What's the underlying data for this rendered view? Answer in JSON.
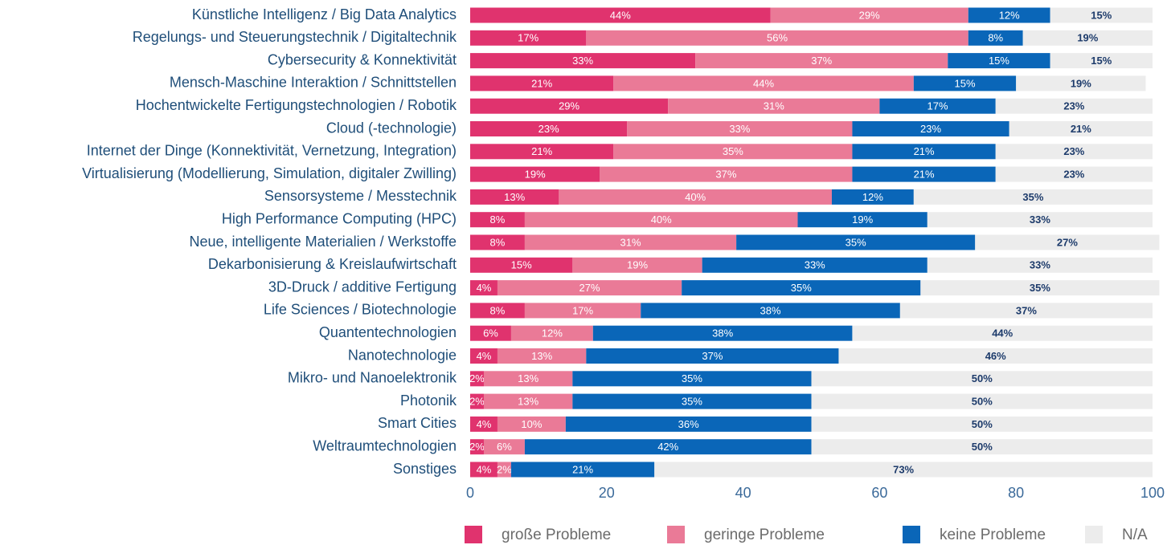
{
  "chart_data": {
    "type": "stacked-bar-horizontal",
    "categories": [
      "Künstliche Intelligenz / Big Data Analytics",
      "Regelungs- und Steuerungstechnik / Digitaltechnik",
      "Cybersecurity & Konnektivität",
      "Mensch-Maschine Interaktion / Schnittstellen",
      "Hochentwickelte Fertigungstechnologien / Robotik",
      "Cloud (-technologie)",
      "Internet der Dinge (Konnektivität, Vernetzung, Integration)",
      "Virtualisierung (Modellierung, Simulation, digitaler Zwilling)",
      "Sensorsysteme / Messtechnik",
      "High Performance Computing (HPC)",
      "Neue, intelligente Materialien / Werkstoffe",
      "Dekarbonisierung & Kreislaufwirtschaft",
      "3D-Druck / additive Fertigung",
      "Life Sciences / Biotechnologie",
      "Quantentechnologien",
      "Nanotechnologie",
      "Mikro- und Nanoelektronik",
      "Photonik",
      "Smart Cities",
      "Weltraumtechnologien",
      "Sonstiges"
    ],
    "series": [
      {
        "name": "große Probleme",
        "color": "#e0336e",
        "values": [
          44,
          17,
          33,
          21,
          29,
          23,
          21,
          19,
          13,
          8,
          8,
          15,
          4,
          8,
          6,
          4,
          2,
          2,
          4,
          2,
          4
        ],
        "value_labels": [
          "44%",
          "17%",
          "33%",
          "21%",
          "29%",
          "23%",
          "21%",
          "19%",
          "13%",
          "8%",
          "8%",
          "15%",
          "4%",
          "8%",
          "6%",
          "4%",
          "2%",
          "2%",
          "4%",
          "2%",
          "4%"
        ]
      },
      {
        "name": "geringe Probleme",
        "color": "#ea7a97",
        "values": [
          29,
          56,
          37,
          44,
          31,
          33,
          35,
          37,
          40,
          40,
          31,
          19,
          27,
          17,
          12,
          13,
          13,
          13,
          10,
          6,
          2
        ],
        "value_labels": [
          "29%",
          "56%",
          "37%",
          "44%",
          "31%",
          "33%",
          "35%",
          "37%",
          "40%",
          "40%",
          "31%",
          "19%",
          "27%",
          "17%",
          "12%",
          "13%",
          "13%",
          "13%",
          "10%",
          "6%",
          "2%"
        ]
      },
      {
        "name": "keine Probleme",
        "color": "#0a66b8",
        "values": [
          12,
          8,
          15,
          15,
          17,
          23,
          21,
          21,
          12,
          19,
          35,
          33,
          35,
          38,
          38,
          37,
          35,
          35,
          36,
          42,
          21
        ],
        "value_labels": [
          "12%",
          "8%",
          "15%",
          "15%",
          "17%",
          "23%",
          "21%",
          "21%",
          "12%",
          "19%",
          "35%",
          "33%",
          "35%",
          "38%",
          "38%",
          "37%",
          "35%",
          "35%",
          "36%",
          "42%",
          "21%"
        ]
      },
      {
        "name": "N/A",
        "color": "#ececec",
        "values": [
          15,
          19,
          15,
          19,
          23,
          21,
          23,
          23,
          35,
          33,
          27,
          33,
          35,
          37,
          44,
          46,
          50,
          50,
          50,
          50,
          73
        ],
        "value_labels": [
          "15%",
          "19%",
          "15%",
          "19%",
          "23%",
          "21%",
          "23%",
          "23%",
          "35%",
          "33%",
          "27%",
          "33%",
          "35%",
          "37%",
          "44%",
          "46%",
          "50%",
          "50%",
          "50%",
          "50%",
          "73%"
        ]
      }
    ],
    "xlim": [
      0,
      100
    ],
    "xticks": [
      0,
      20,
      40,
      60,
      80,
      100
    ],
    "legend": "bottom-right"
  }
}
